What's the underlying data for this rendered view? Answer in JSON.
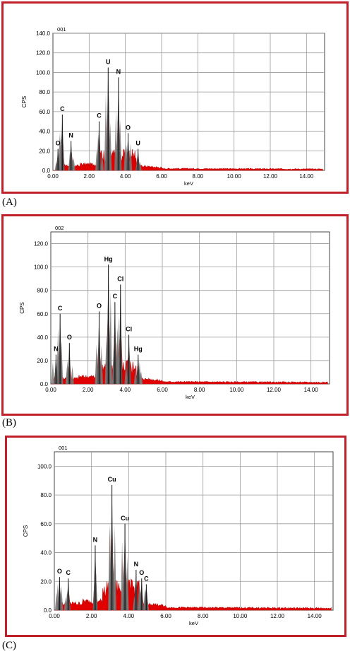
{
  "panels": [
    {
      "panel_label": "(A)",
      "chart_data": {
        "type": "spectrum",
        "plot_label": "001",
        "ylabel": "CPS",
        "xlabel": "keV",
        "xlim": [
          0,
          15
        ],
        "ylim": [
          0,
          140
        ],
        "x_ticks": [
          "0.00",
          "2.00",
          "4.00",
          "6.00",
          "8.00",
          "10.00",
          "12.00",
          "14.00"
        ],
        "y_ticks": [
          "0.0",
          "20.0",
          "40.0",
          "60.0",
          "80.0",
          "100.0",
          "120.0",
          "140.0"
        ],
        "peaks": [
          {
            "x": 0.28,
            "y": 22,
            "label": "O"
          },
          {
            "x": 0.52,
            "y": 57,
            "label": "C"
          },
          {
            "x": 1.0,
            "y": 30,
            "label": "N"
          },
          {
            "x": 2.55,
            "y": 50,
            "label": "C"
          },
          {
            "x": 3.05,
            "y": 105,
            "label": "U"
          },
          {
            "x": 3.62,
            "y": 95,
            "label": "N"
          },
          {
            "x": 4.15,
            "y": 38,
            "label": "O"
          },
          {
            "x": 4.7,
            "y": 22,
            "label": "U"
          }
        ]
      }
    },
    {
      "panel_label": "(B)",
      "chart_data": {
        "type": "spectrum",
        "plot_label": "002",
        "ylabel": "CPS",
        "xlabel": "keV",
        "xlim": [
          0,
          15
        ],
        "ylim": [
          0,
          130
        ],
        "x_ticks": [
          "0.00",
          "2.00",
          "4.00",
          "6.00",
          "8.00",
          "10.00",
          "12.00",
          "14.00"
        ],
        "y_ticks": [
          "0.0",
          "20.0",
          "40.0",
          "60.0",
          "80.0",
          "100.0",
          "120.0"
        ],
        "peaks": [
          {
            "x": 0.28,
            "y": 25,
            "label": "N"
          },
          {
            "x": 0.5,
            "y": 60,
            "label": "C"
          },
          {
            "x": 1.0,
            "y": 35,
            "label": "O"
          },
          {
            "x": 2.6,
            "y": 62,
            "label": "O"
          },
          {
            "x": 3.1,
            "y": 102,
            "label": "Hg"
          },
          {
            "x": 3.45,
            "y": 70,
            "label": "C"
          },
          {
            "x": 3.75,
            "y": 85,
            "label": "Cl"
          },
          {
            "x": 4.2,
            "y": 42,
            "label": "Cl"
          },
          {
            "x": 4.7,
            "y": 25,
            "label": "Hg"
          }
        ]
      }
    },
    {
      "panel_label": "(C)",
      "chart_data": {
        "type": "spectrum",
        "plot_label": "001",
        "ylabel": "CPS",
        "xlabel": "keV",
        "xlim": [
          0,
          15
        ],
        "ylim": [
          0,
          110
        ],
        "x_ticks": [
          "0.00",
          "2.00",
          "4.00",
          "6.00",
          "8.00",
          "10.00",
          "12.00",
          "14.00"
        ],
        "y_ticks": [
          "0.0",
          "20.0",
          "40.0",
          "60.0",
          "80.0",
          "100.0"
        ],
        "peaks": [
          {
            "x": 0.28,
            "y": 23,
            "label": "O"
          },
          {
            "x": 0.75,
            "y": 22,
            "label": "C"
          },
          {
            "x": 2.2,
            "y": 45,
            "label": "N"
          },
          {
            "x": 3.1,
            "y": 87,
            "label": "Cu"
          },
          {
            "x": 3.8,
            "y": 60,
            "label": "Cu"
          },
          {
            "x": 4.4,
            "y": 28,
            "label": "N"
          },
          {
            "x": 4.7,
            "y": 22,
            "label": "O"
          },
          {
            "x": 4.95,
            "y": 18,
            "label": "C"
          }
        ]
      }
    }
  ]
}
